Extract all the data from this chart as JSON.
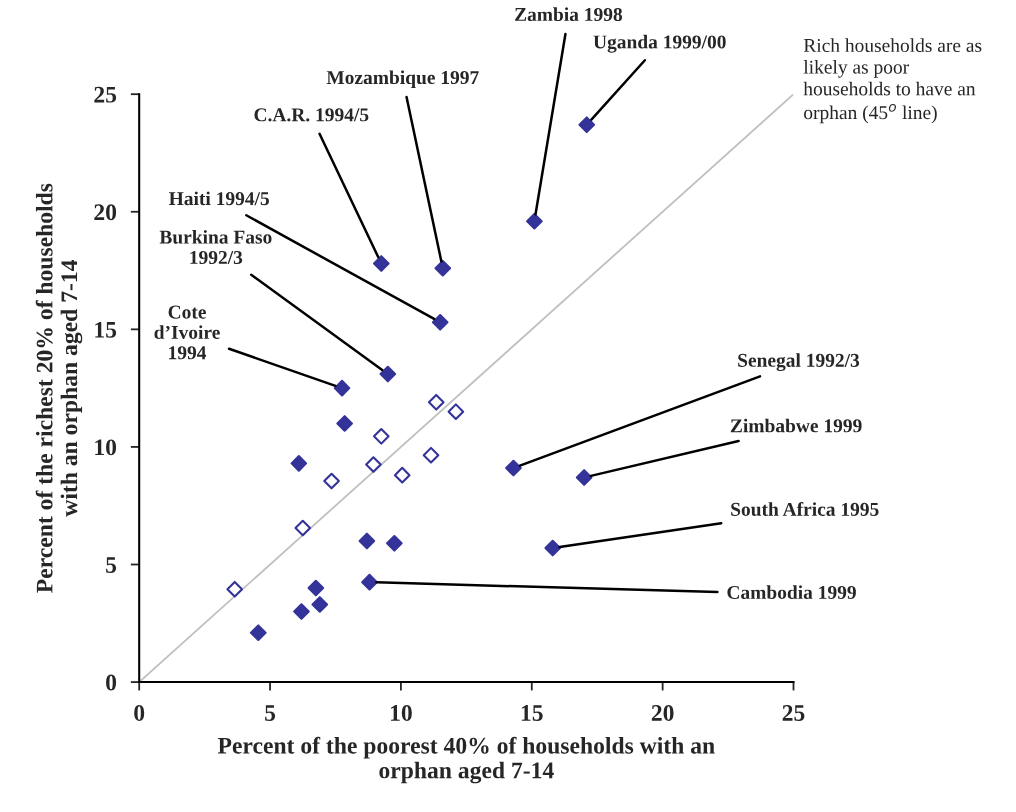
{
  "chart_data": {
    "type": "scatter",
    "xlabel": "Percent of the poorest 40% of households with an\norphan aged 7-14",
    "ylabel": "Percent of the richest 20% of households\nwith an orphan aged 7-14",
    "xlim": [
      0,
      25
    ],
    "ylim": [
      0,
      25
    ],
    "xticks": [
      0,
      5,
      10,
      15,
      20,
      25
    ],
    "yticks": [
      0,
      5,
      10,
      15,
      20,
      25
    ],
    "grid": false,
    "legend": false,
    "series": [
      {
        "color": "#333399",
        "marker": "diamond",
        "x": [
          17.1,
          15.1,
          9.25,
          11.6,
          11.5,
          9.5,
          7.75,
          7.85,
          6.1,
          14.3,
          17.0,
          8.7,
          9.75,
          15.8,
          6.75,
          8.8,
          6.2,
          6.9,
          4.55
        ],
        "values": [
          23.7,
          19.6,
          17.8,
          17.6,
          15.3,
          13.1,
          12.5,
          11.0,
          9.3,
          9.1,
          8.7,
          6.0,
          5.9,
          5.7,
          4.0,
          4.25,
          3.0,
          3.3,
          2.1
        ]
      },
      {
        "color": "#333399",
        "marker": "diamond",
        "x": [
          11.35,
          12.1,
          9.25,
          8.95,
          11.15,
          10.05,
          7.35,
          6.25,
          3.65
        ],
        "values": [
          11.9,
          11.5,
          10.45,
          9.25,
          9.65,
          8.8,
          8.55,
          6.55,
          3.95
        ]
      },
      {
        "type": "line",
        "color": "#c0c0c0",
        "x": [
          0,
          25
        ],
        "values": [
          0,
          25
        ]
      }
    ],
    "annotations": [
      {
        "text": "Uganda 1999/00",
        "x": 17.1,
        "y": 23.7
      },
      {
        "text": "Zambia 1998",
        "x": 15.1,
        "y": 19.6
      },
      {
        "text": "C.A.R. 1994/5",
        "x": 9.25,
        "y": 17.8
      },
      {
        "text": "Mozambique 1997",
        "x": 11.6,
        "y": 17.6
      },
      {
        "text": "Haiti 1994/5",
        "x": 11.5,
        "y": 15.3
      },
      {
        "text": "Burkina Faso\n1992/3",
        "x": 9.5,
        "y": 13.1
      },
      {
        "text": "Cote\nd’Ivoire\n1994",
        "x": 7.75,
        "y": 12.5
      },
      {
        "text": "Senegal 1992/3",
        "x": 14.3,
        "y": 9.1
      },
      {
        "text": "Zimbabwe 1999",
        "x": 17.0,
        "y": 8.7
      },
      {
        "text": "South Africa 1995",
        "x": 15.8,
        "y": 5.7
      },
      {
        "text": "Cambodia 1999",
        "x": 8.8,
        "y": 4.25
      },
      "Rich households are as\nlikely as poor\nhouseholds to have an\norphan (45$^{o}$ line)"
    ]
  }
}
